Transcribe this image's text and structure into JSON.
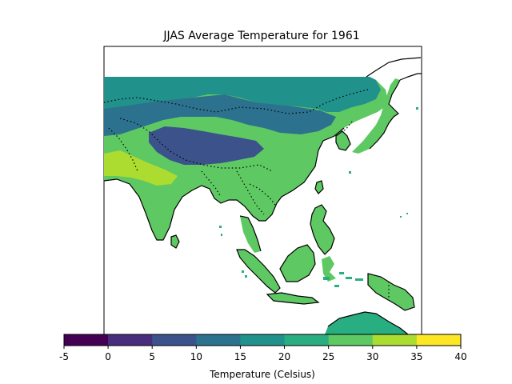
{
  "title": "JJAS Average Temperature for 1961",
  "colorbar": {
    "label": "Temperature (Celsius)",
    "ticks": [
      "-5",
      "0",
      "5",
      "10",
      "15",
      "20",
      "25",
      "30",
      "35",
      "40"
    ],
    "colors": [
      "#440154",
      "#472d7b",
      "#3b528b",
      "#2c728e",
      "#21918c",
      "#28ae80",
      "#5ec962",
      "#addc30",
      "#fde725"
    ]
  },
  "map": {
    "land_colors": {
      "cold": "#3b528b",
      "cool": "#2c728e",
      "mild": "#21918c",
      "warm": "#28ae80",
      "hot": "#5ec962",
      "very_hot": "#addc30"
    },
    "coastline_color": "#000000",
    "ocean_color": "#ffffff"
  }
}
